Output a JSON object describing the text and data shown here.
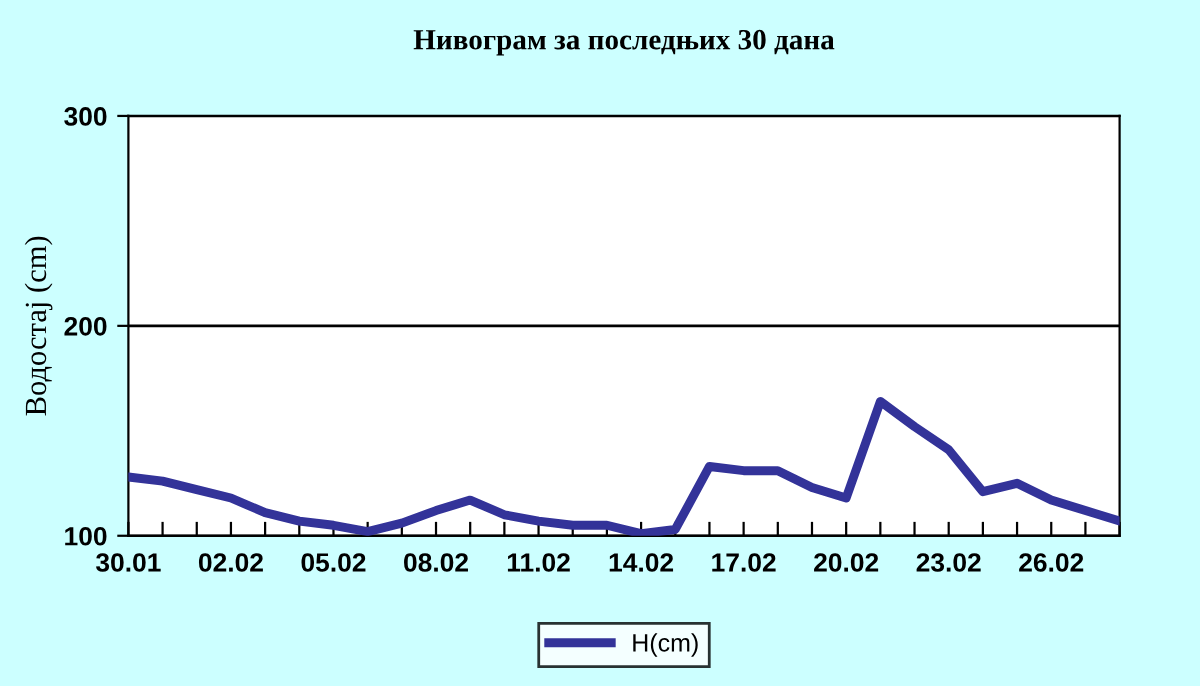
{
  "chart_data": {
    "type": "line",
    "title": "Нивограм за последњих 30 дана",
    "ylabel": "Водостај (cm)",
    "categories": [
      "30.01",
      null,
      null,
      "02.02",
      null,
      null,
      "05.02",
      null,
      null,
      "08.02",
      null,
      null,
      "11.02",
      null,
      null,
      "14.02",
      null,
      null,
      "17.02",
      null,
      null,
      "20.02",
      null,
      null,
      "23.02",
      null,
      null,
      "26.02",
      null,
      null
    ],
    "series": [
      {
        "name": "H(cm)",
        "color": "#333399",
        "values": [
          128,
          126,
          122,
          118,
          111,
          107,
          105,
          102,
          106,
          112,
          117,
          110,
          107,
          105,
          105,
          101,
          103,
          133,
          131,
          131,
          123,
          118,
          164,
          152,
          141,
          121,
          125,
          117,
          112,
          107
        ]
      }
    ],
    "ylim": [
      100,
      300
    ],
    "yticks": [
      100,
      200,
      300
    ],
    "grid": "y",
    "legend": "bottom",
    "marker": "none",
    "line_style": "solid"
  }
}
